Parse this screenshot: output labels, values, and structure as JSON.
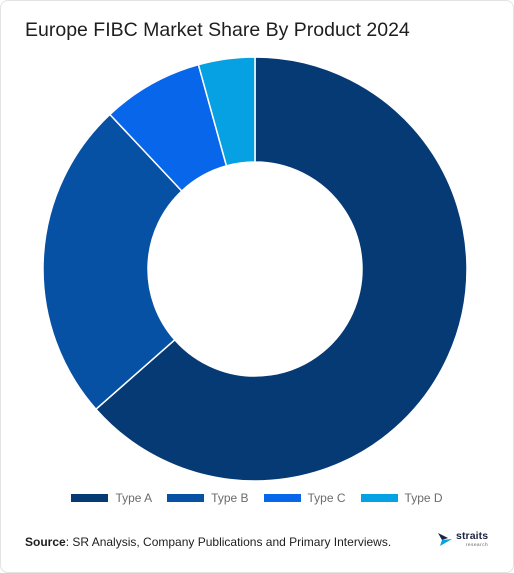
{
  "title": "Europe FIBC Market Share By Product 2024",
  "chart_data": {
    "type": "pie",
    "title": "Europe FIBC Market Share By Product 2024",
    "donut": true,
    "categories": [
      "Type A",
      "Type B",
      "Type C",
      "Type D"
    ],
    "values": [
      63.5,
      24.5,
      7.7,
      4.3
    ],
    "colors": [
      "#063a74",
      "#0651a3",
      "#0866ea",
      "#06a1e2"
    ],
    "legend_position": "bottom"
  },
  "source": {
    "label": "Source",
    "text": ": SR Analysis, Company Publications and Primary Interviews."
  },
  "logo": {
    "word": "straits",
    "sub": "research"
  }
}
